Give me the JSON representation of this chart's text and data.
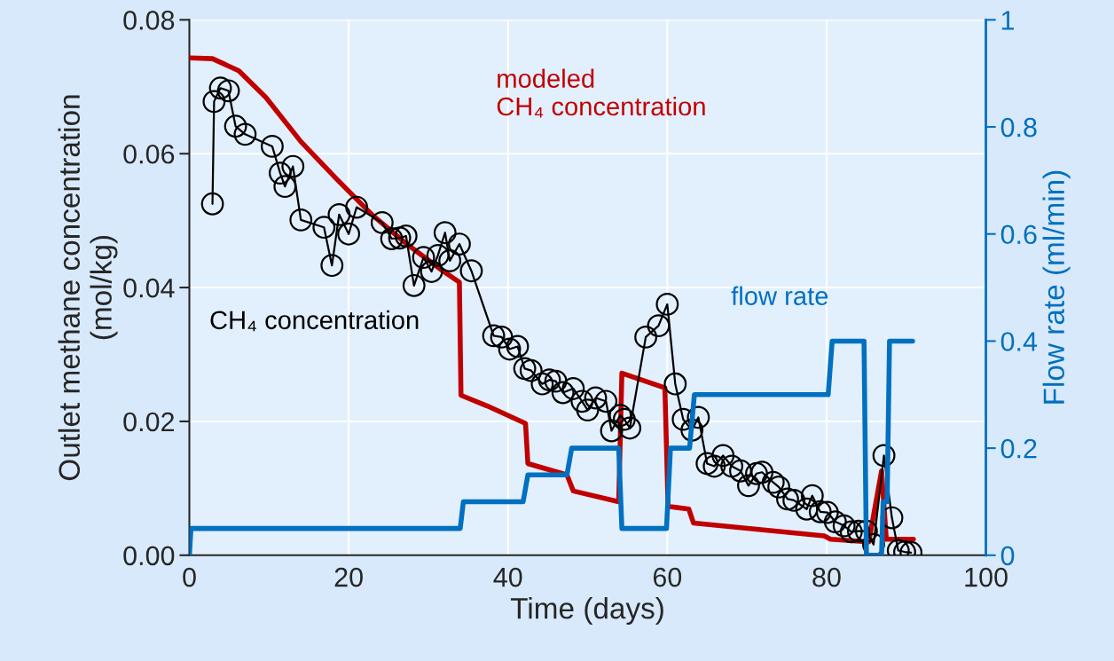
{
  "chart_data": {
    "type": "line",
    "xlabel": "Time (days)",
    "ylabel": "Outlet methane concentration\n(mol/kg)",
    "y2label": "Flow rate (ml/min)",
    "xlim": [
      0,
      100
    ],
    "xticks": [
      0,
      20,
      40,
      60,
      80,
      100
    ],
    "ylim": [
      0,
      0.08
    ],
    "yticks": [
      {
        "value": 0,
        "label": "0.00"
      },
      {
        "value": 0.02,
        "label": "0.02"
      },
      {
        "value": 0.04,
        "label": "0.04"
      },
      {
        "value": 0.06,
        "label": "0.06"
      },
      {
        "value": 0.08,
        "label": "0.08"
      }
    ],
    "y2lim": [
      0,
      1
    ],
    "y2ticks": [
      0,
      0.2,
      0.4,
      0.6,
      0.8,
      1
    ],
    "grid": true,
    "legend": false,
    "series": [
      {
        "name": "modeled\nCH₄ concentration",
        "color": "#c00000",
        "marker": "none",
        "x": [
          0,
          2.9,
          6.2,
          9.6,
          14,
          18.5,
          23,
          27.4,
          31.8,
          33.9,
          34.1,
          37.4,
          42.2,
          42.5,
          47.4,
          48.2,
          53.9,
          54.3,
          59.7,
          60.1,
          62.7,
          63.3,
          79.7,
          80.5,
          85.3,
          86.9,
          87.5,
          90.9
        ],
        "values": [
          0.0743,
          0.0742,
          0.0724,
          0.0684,
          0.0618,
          0.0562,
          0.0508,
          0.0464,
          0.0425,
          0.0408,
          0.0239,
          0.0223,
          0.0197,
          0.0137,
          0.012,
          0.0096,
          0.008,
          0.0272,
          0.025,
          0.0073,
          0.0069,
          0.0048,
          0.0029,
          0.0024,
          0.002,
          0.0126,
          0.0024,
          0.0024
        ]
      },
      {
        "name": "CH₄ concentration",
        "color": "#000000",
        "marker": "circle",
        "x": [
          2.9,
          3.1,
          3.9,
          4.9,
          5.8,
          7.0,
          10.4,
          11.4,
          12.0,
          13.0,
          14.0,
          16.9,
          17.9,
          18.8,
          20.0,
          21.0,
          24.2,
          25.4,
          26.4,
          27.2,
          28.2,
          29.4,
          30.4,
          31.2,
          32.1,
          32.7,
          33.9,
          35.4,
          38.2,
          39.2,
          40.2,
          41.2,
          42.1,
          42.9,
          44.3,
          45.2,
          46.0,
          46.9,
          48.2,
          49.3,
          50.0,
          51.0,
          52.3,
          53.0,
          54.1,
          54.6,
          55.3,
          57.3,
          58.9,
          60.0,
          61.0,
          62.0,
          63.1,
          63.9,
          65.0,
          65.9,
          67.0,
          68.1,
          69.2,
          70.2,
          71.2,
          71.9,
          73.3,
          74.0,
          75.1,
          75.9,
          77.5,
          78.2,
          79.2,
          80.1,
          81.1,
          82.2,
          83.1,
          84.0,
          85.0,
          85.9,
          87.2,
          88.2,
          89.0,
          89.8,
          90.6
        ],
        "values": [
          0.0525,
          0.0678,
          0.0698,
          0.0694,
          0.0641,
          0.0629,
          0.0611,
          0.0571,
          0.0551,
          0.0581,
          0.0501,
          0.049,
          0.0433,
          0.0509,
          0.048,
          0.052,
          0.0497,
          0.0473,
          0.0474,
          0.0477,
          0.0403,
          0.0445,
          0.0424,
          0.0448,
          0.0482,
          0.044,
          0.0465,
          0.0425,
          0.0328,
          0.0326,
          0.0308,
          0.0312,
          0.0279,
          0.0276,
          0.0256,
          0.0262,
          0.026,
          0.0243,
          0.0249,
          0.023,
          0.0217,
          0.0235,
          0.023,
          0.0186,
          0.0209,
          0.0203,
          0.019,
          0.0326,
          0.0343,
          0.0375,
          0.0256,
          0.0203,
          0.0187,
          0.0206,
          0.0137,
          0.0133,
          0.0149,
          0.0133,
          0.0126,
          0.0104,
          0.0122,
          0.0124,
          0.0109,
          0.0102,
          0.0084,
          0.0082,
          0.0069,
          0.0089,
          0.0065,
          0.0064,
          0.005,
          0.0044,
          0.0035,
          0.0036,
          0.0036,
          0.0016,
          0.0149,
          0.0056,
          0.0007,
          0.0005,
          0.0004
        ]
      },
      {
        "name": "flow rate",
        "color": "#0070c0",
        "marker": "none",
        "axis": "y2",
        "x": [
          0,
          0.2,
          34,
          34.4,
          41.9,
          42.5,
          47.4,
          48,
          53.9,
          54.3,
          59.9,
          60.4,
          62.8,
          63.4,
          80.2,
          80.7,
          84.7,
          85,
          86.9,
          87.1,
          87.6,
          87.9,
          90.8
        ],
        "values": [
          0,
          0.05,
          0.05,
          0.1,
          0.1,
          0.15,
          0.15,
          0.2,
          0.2,
          0.05,
          0.05,
          0.2,
          0.2,
          0.3,
          0.3,
          0.4,
          0.4,
          0,
          0,
          0.1,
          0.1,
          0.4,
          0.4
        ]
      }
    ]
  }
}
